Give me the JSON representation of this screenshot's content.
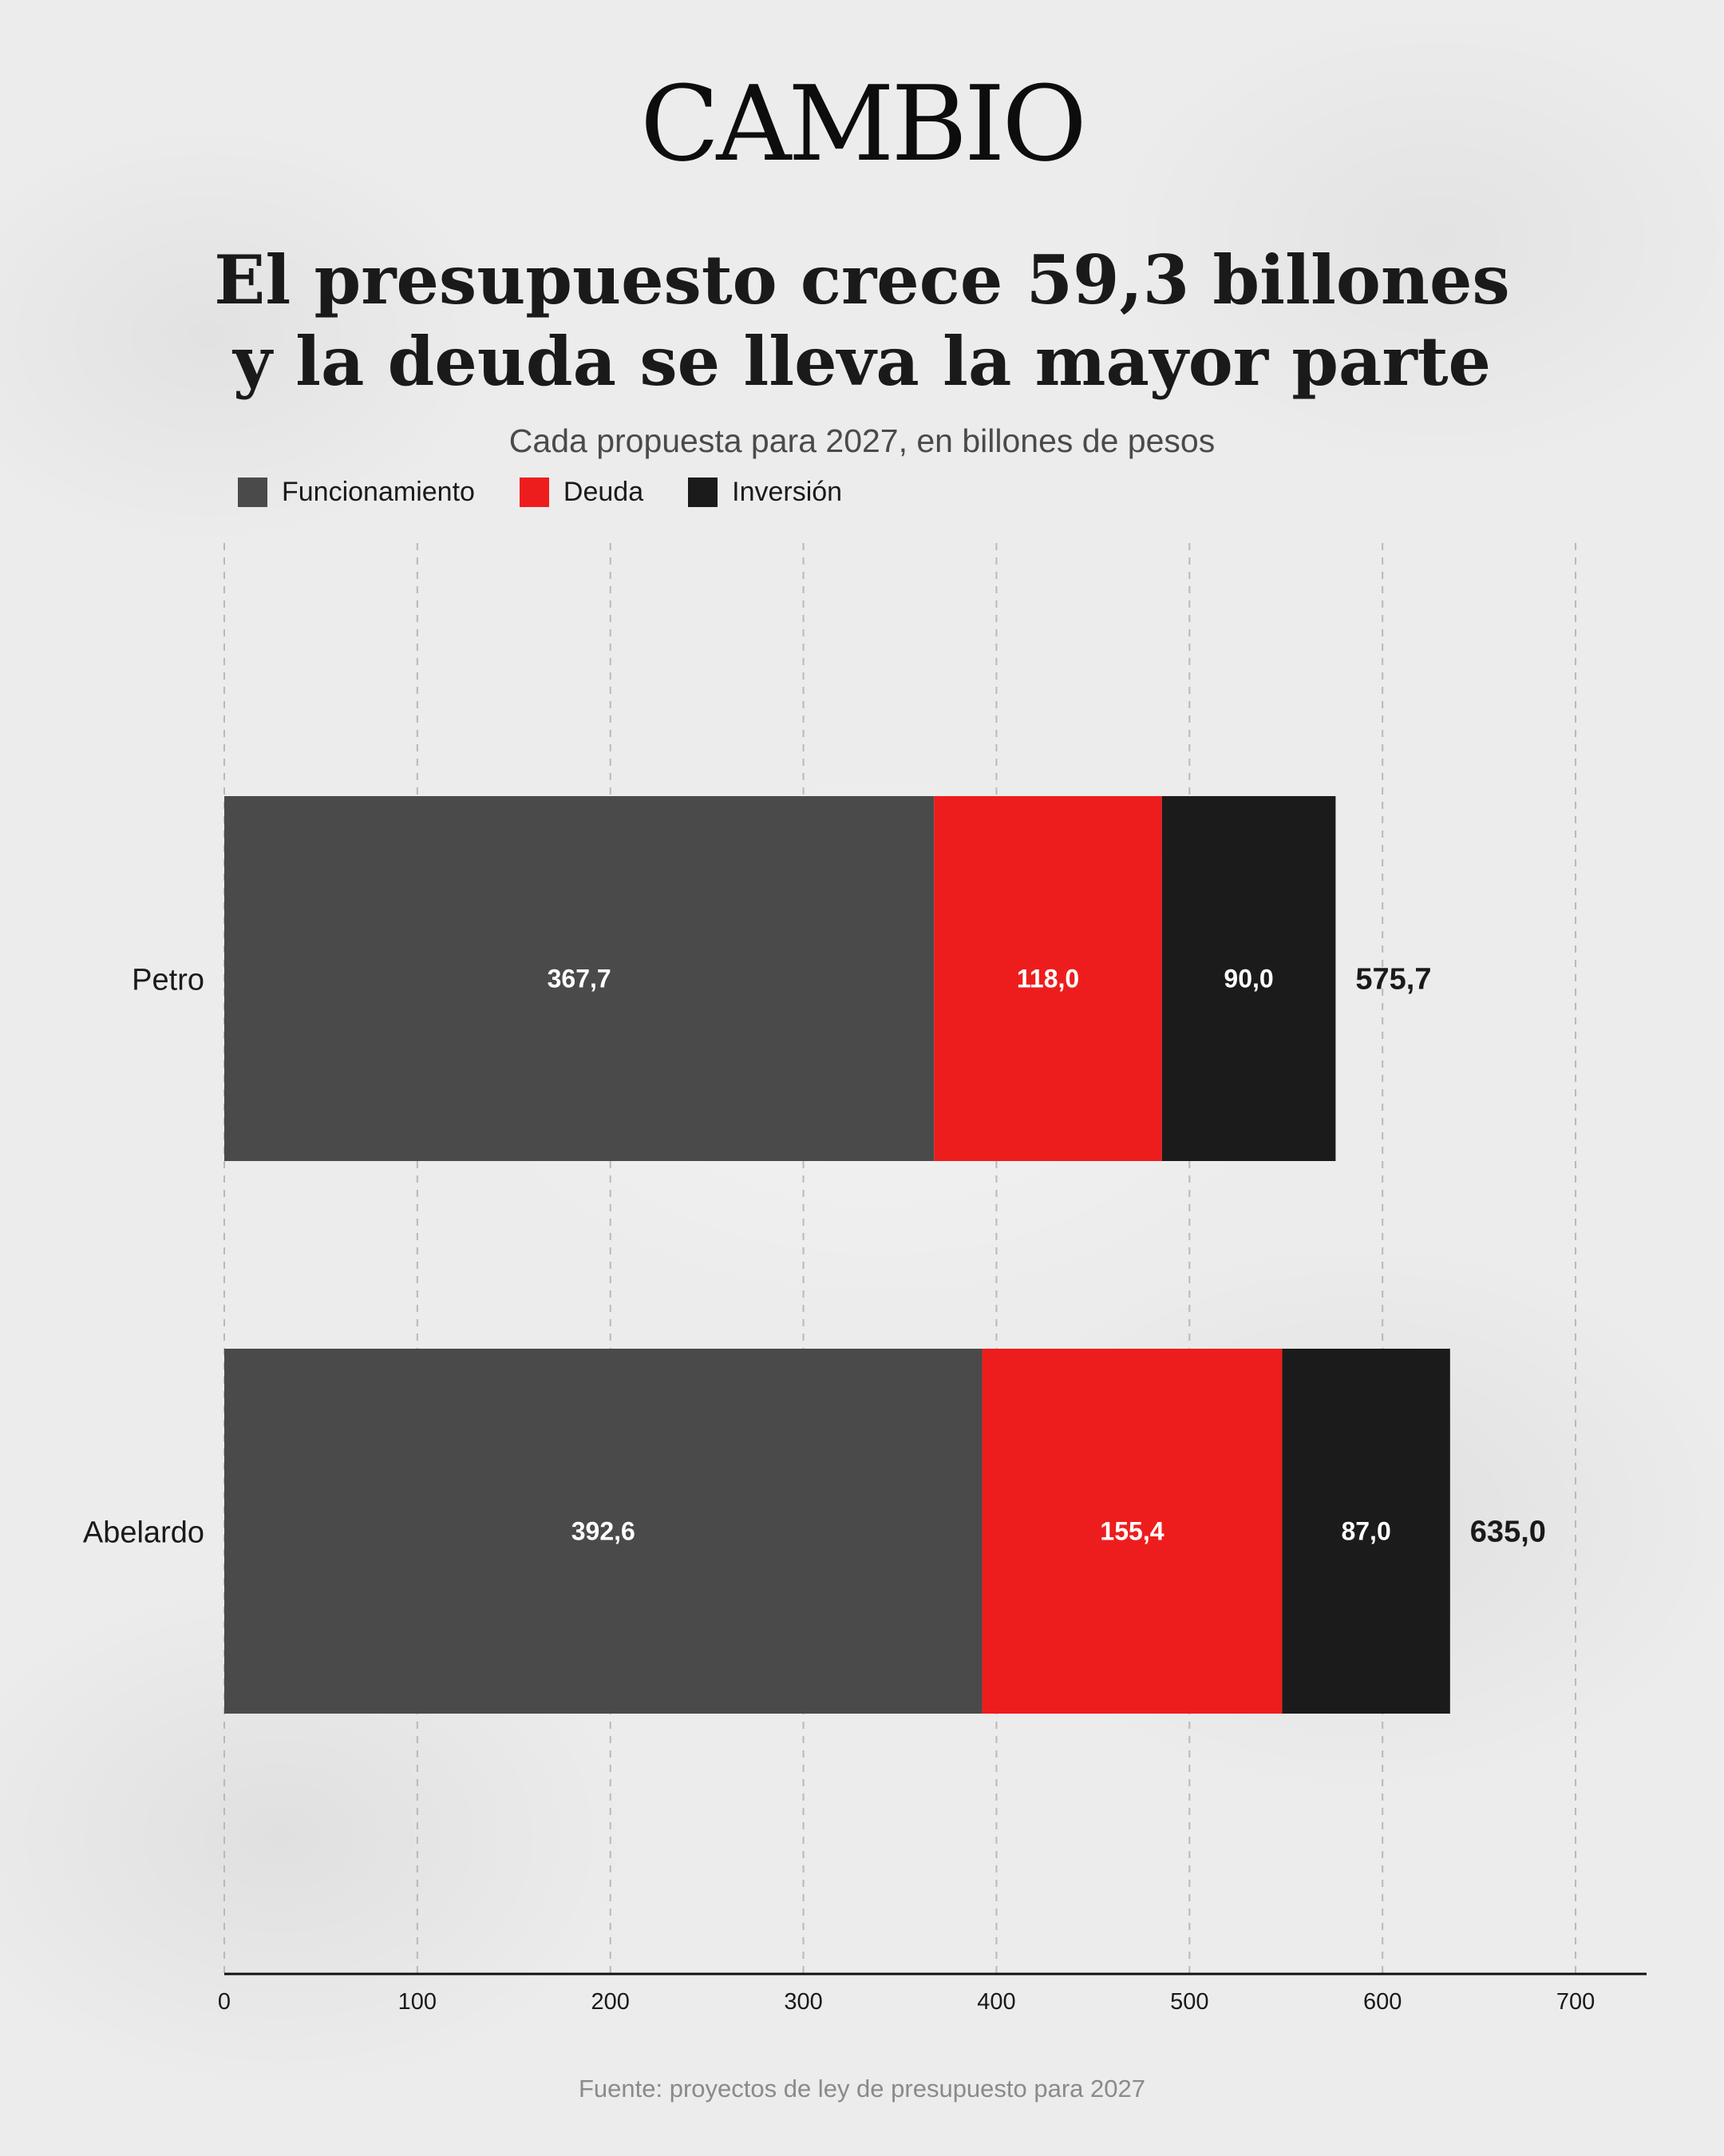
{
  "brand": {
    "logo_text": "CAMBIO"
  },
  "chart_data": {
    "type": "bar",
    "orientation": "horizontal",
    "stacked": true,
    "title_lines": [
      "El presupuesto crece 59,3 billones",
      "y la deuda se lleva la mayor parte"
    ],
    "subtitle": "Cada propuesta para 2027, en billones de pesos",
    "categories": [
      "Petro",
      "Abelardo"
    ],
    "series": [
      {
        "name": "Funcionamiento",
        "color": "#4a4a4a",
        "values": [
          367.7,
          392.6
        ],
        "labels": [
          "367,7",
          "392,6"
        ]
      },
      {
        "name": "Deuda",
        "color": "#ee1d1d",
        "values": [
          118.0,
          155.4
        ],
        "labels": [
          "118,0",
          "155,4"
        ]
      },
      {
        "name": "Inversión",
        "color": "#1b1b1b",
        "values": [
          90.0,
          87.0
        ],
        "labels": [
          "90,0",
          "87,0"
        ]
      }
    ],
    "totals": [
      575.7,
      635.0
    ],
    "total_labels": [
      "575,7",
      "635,0"
    ],
    "xlim": [
      0,
      740
    ],
    "xticks": [
      0,
      100,
      200,
      300,
      400,
      500,
      600,
      700
    ],
    "grid": "vertical dashed",
    "legend_position": "top-left"
  },
  "footer": {
    "source": "Fuente: proyectos de ley de presupuesto para 2027"
  }
}
